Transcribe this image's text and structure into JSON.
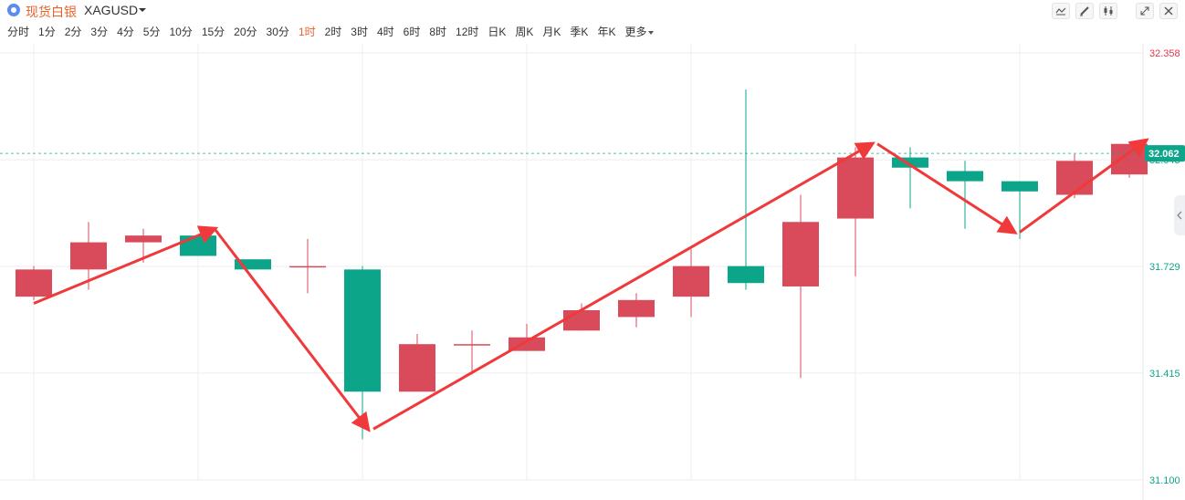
{
  "header": {
    "symbol_name": "现货白银",
    "symbol_code": "XAGUSD",
    "tools": [
      "line-tool-icon",
      "pencil-icon",
      "candlestick-icon",
      "fullscreen-icon",
      "close-icon"
    ]
  },
  "periods": [
    "分时",
    "1分",
    "2分",
    "3分",
    "4分",
    "5分",
    "10分",
    "15分",
    "20分",
    "30分",
    "1时",
    "2时",
    "3时",
    "4时",
    "6时",
    "8时",
    "12时",
    "日K",
    "周K",
    "月K",
    "季K",
    "年K",
    "更多"
  ],
  "active_period": "1时",
  "chart_data": {
    "type": "candlestick",
    "y_axis_ticks": [
      "32.358",
      "32.043",
      "31.729",
      "31.415",
      "31.100"
    ],
    "ylim": [
      31.1,
      32.358
    ],
    "current_price": "32.062",
    "candles": [
      {
        "open": 31.64,
        "close": 31.72,
        "high": 31.73,
        "low": 31.63
      },
      {
        "open": 31.72,
        "close": 31.8,
        "high": 31.86,
        "low": 31.66
      },
      {
        "open": 31.8,
        "close": 31.82,
        "high": 31.84,
        "low": 31.74
      },
      {
        "open": 31.82,
        "close": 31.76,
        "high": 31.82,
        "low": 31.76
      },
      {
        "open": 31.75,
        "close": 31.72,
        "high": 31.75,
        "low": 31.72
      },
      {
        "open": 31.73,
        "close": 31.73,
        "high": 31.81,
        "low": 31.65
      },
      {
        "open": 31.72,
        "close": 31.36,
        "high": 31.73,
        "low": 31.22
      },
      {
        "open": 31.36,
        "close": 31.5,
        "high": 31.53,
        "low": 31.36
      },
      {
        "open": 31.5,
        "close": 31.5,
        "high": 31.54,
        "low": 31.41
      },
      {
        "open": 31.48,
        "close": 31.52,
        "high": 31.56,
        "low": 31.48
      },
      {
        "open": 31.54,
        "close": 31.6,
        "high": 31.62,
        "low": 31.54
      },
      {
        "open": 31.58,
        "close": 31.63,
        "high": 31.65,
        "low": 31.55
      },
      {
        "open": 31.64,
        "close": 31.73,
        "high": 31.78,
        "low": 31.58
      },
      {
        "open": 31.73,
        "close": 31.68,
        "high": 32.25,
        "low": 31.66
      },
      {
        "open": 31.67,
        "close": 31.86,
        "high": 31.94,
        "low": 31.4
      },
      {
        "open": 31.87,
        "close": 32.05,
        "high": 32.08,
        "low": 31.7
      },
      {
        "open": 32.05,
        "close": 32.02,
        "high": 32.08,
        "low": 31.9
      },
      {
        "open": 32.01,
        "close": 31.98,
        "high": 32.04,
        "low": 31.84
      },
      {
        "open": 31.98,
        "close": 31.95,
        "high": 31.98,
        "low": 31.81
      },
      {
        "open": 31.94,
        "close": 32.04,
        "high": 32.06,
        "low": 31.93
      },
      {
        "open": 32.0,
        "close": 32.09,
        "high": 32.09,
        "low": 31.99
      }
    ],
    "annotation_arrows": [
      {
        "from": [
          0,
          31.62
        ],
        "to": [
          3.3,
          31.84
        ]
      },
      {
        "from": [
          3.3,
          31.84
        ],
        "to": [
          6.1,
          31.25
        ]
      },
      {
        "from": [
          6.2,
          31.25
        ],
        "to": [
          15.3,
          32.09
        ]
      },
      {
        "from": [
          15.4,
          32.09
        ],
        "to": [
          17.9,
          31.83
        ]
      },
      {
        "from": [
          18.0,
          31.83
        ],
        "to": [
          20.3,
          32.1
        ]
      }
    ],
    "colors": {
      "up": "#d94b5a",
      "down": "#0ca58a",
      "arrow": "#f0393a",
      "price_line": "#0ca58a",
      "grid": "#eeeeee",
      "axis_top_label": "#e03a48",
      "axis_label": "#0ca58a"
    }
  }
}
